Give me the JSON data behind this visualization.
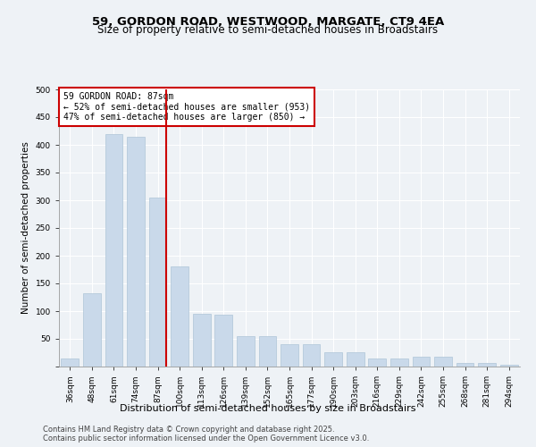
{
  "title": "59, GORDON ROAD, WESTWOOD, MARGATE, CT9 4EA",
  "subtitle": "Size of property relative to semi-detached houses in Broadstairs",
  "xlabel": "Distribution of semi-detached houses by size in Broadstairs",
  "ylabel": "Number of semi-detached properties",
  "categories": [
    "36sqm",
    "48sqm",
    "61sqm",
    "74sqm",
    "87sqm",
    "100sqm",
    "113sqm",
    "126sqm",
    "139sqm",
    "152sqm",
    "165sqm",
    "177sqm",
    "190sqm",
    "203sqm",
    "216sqm",
    "229sqm",
    "242sqm",
    "255sqm",
    "268sqm",
    "281sqm",
    "294sqm"
  ],
  "values": [
    15,
    133,
    420,
    415,
    305,
    180,
    95,
    93,
    55,
    55,
    41,
    41,
    26,
    26,
    15,
    15,
    18,
    18,
    6,
    6,
    4
  ],
  "bar_color": "#c9d9ea",
  "bar_edge_color": "#aec4d8",
  "red_line_index": 4,
  "annotation_title": "59 GORDON ROAD: 87sqm",
  "annotation_line1": "← 52% of semi-detached houses are smaller (953)",
  "annotation_line2": "47% of semi-detached houses are larger (850) →",
  "annotation_box_color": "#ffffff",
  "annotation_box_edge": "#cc0000",
  "vline_color": "#cc0000",
  "footer1": "Contains HM Land Registry data © Crown copyright and database right 2025.",
  "footer2": "Contains public sector information licensed under the Open Government Licence v3.0.",
  "ylim": [
    0,
    500
  ],
  "yticks": [
    0,
    50,
    100,
    150,
    200,
    250,
    300,
    350,
    400,
    450,
    500
  ],
  "bg_color": "#eef2f6",
  "plot_bg_color": "#eef2f6",
  "title_fontsize": 9.5,
  "subtitle_fontsize": 8.5,
  "tick_fontsize": 6.5,
  "ylabel_fontsize": 7.5,
  "xlabel_fontsize": 8,
  "annotation_fontsize": 7,
  "footer_fontsize": 6
}
